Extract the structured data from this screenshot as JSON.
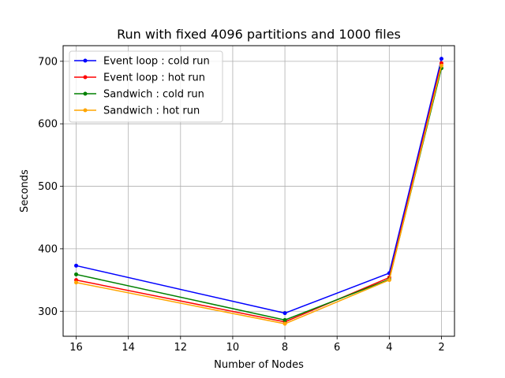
{
  "chart_data": {
    "type": "line",
    "title": "Run with fixed 4096 partitions and 1000 files",
    "xlabel": "Number of Nodes",
    "ylabel": "Seconds",
    "x": [
      16,
      8,
      4,
      2
    ],
    "xlim": [
      16.5,
      1.5
    ],
    "ylim": [
      260,
      725
    ],
    "xticks": [
      16,
      14,
      12,
      10,
      8,
      6,
      4,
      2
    ],
    "xtick_labels": [
      "16",
      "14",
      "12",
      "10",
      "8",
      "6",
      "4",
      "2"
    ],
    "yticks": [
      300,
      400,
      500,
      600,
      700
    ],
    "ytick_labels": [
      "300",
      "400",
      "500",
      "600",
      "700"
    ],
    "grid": true,
    "legend_position": "top-left",
    "series": [
      {
        "name": "Event loop : cold run",
        "color": "#0000ff",
        "values": [
          373,
          297,
          361,
          704
        ]
      },
      {
        "name": "Event loop : hot run",
        "color": "#ff0000",
        "values": [
          350,
          283,
          354,
          697
        ]
      },
      {
        "name": "Sandwich : cold run",
        "color": "#008000",
        "values": [
          359,
          286,
          351,
          689
        ]
      },
      {
        "name": "Sandwich : hot run",
        "color": "#ffa500",
        "values": [
          346,
          280,
          350,
          693
        ]
      }
    ]
  }
}
